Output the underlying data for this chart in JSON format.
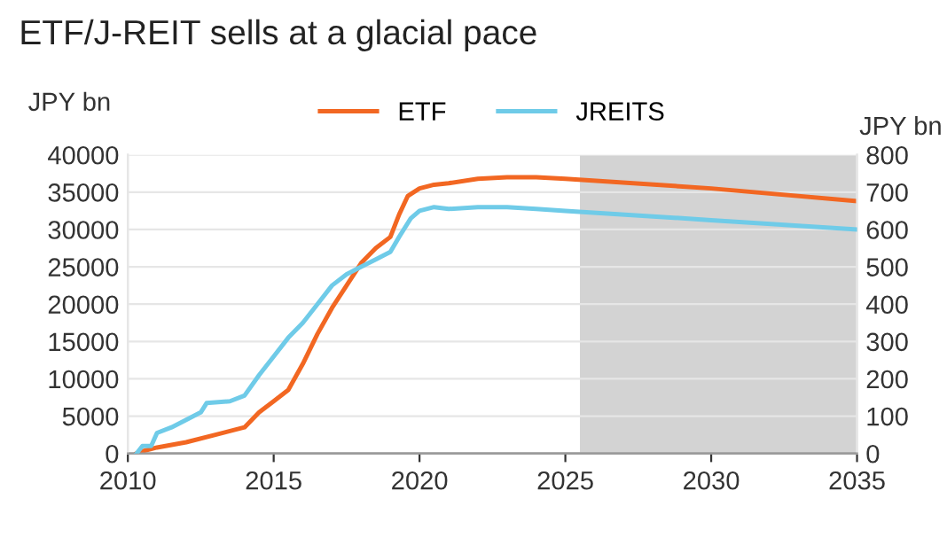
{
  "chart_data": {
    "type": "line",
    "title": "ETF/J-REIT sells at a glacial pace",
    "ylabel": "JPY bn",
    "y2label": "JPY bn",
    "series": [
      {
        "name": "ETF",
        "color": "#f26722",
        "x": [
          2010.3,
          2010.5,
          2011,
          2012,
          2013,
          2014,
          2014.5,
          2015,
          2015.5,
          2016,
          2016.5,
          2017,
          2017.5,
          2018,
          2018.5,
          2019,
          2019.3,
          2019.6,
          2020,
          2020.5,
          2021,
          2022,
          2023,
          2024,
          2025,
          2030,
          2035
        ],
        "values": [
          0,
          300,
          800,
          1500,
          2500,
          3500,
          5500,
          7000,
          8500,
          12000,
          16000,
          19500,
          22500,
          25500,
          27500,
          29000,
          32000,
          34500,
          35500,
          36000,
          36200,
          36800,
          37000,
          37000,
          36800,
          35500,
          33800
        ]
      },
      {
        "name": "JREITS",
        "color": "#6fcbe8",
        "axis": "y2",
        "x": [
          2010.3,
          2010.5,
          2010.8,
          2011,
          2011.5,
          2012,
          2012.5,
          2012.7,
          2013.5,
          2014,
          2014.5,
          2015,
          2015.5,
          2016,
          2016.5,
          2017,
          2017.5,
          2018,
          2018.5,
          2019,
          2019.3,
          2019.7,
          2020,
          2020.5,
          2021,
          2022,
          2023,
          2024,
          2025,
          2030,
          2035
        ],
        "values": [
          0,
          20,
          20,
          55,
          70,
          90,
          110,
          135,
          140,
          155,
          210,
          260,
          310,
          350,
          400,
          450,
          480,
          500,
          520,
          540,
          580,
          630,
          650,
          660,
          655,
          660,
          660,
          655,
          650,
          625,
          600
        ]
      }
    ],
    "xlim": [
      2010,
      2035
    ],
    "xticks": [
      2010,
      2015,
      2020,
      2025,
      2030,
      2035
    ],
    "ylim": [
      0,
      40000
    ],
    "yticks": [
      0,
      5000,
      10000,
      15000,
      20000,
      25000,
      30000,
      35000,
      40000
    ],
    "y2lim": [
      0,
      800
    ],
    "y2ticks": [
      0,
      100,
      200,
      300,
      400,
      500,
      600,
      700,
      800
    ],
    "bands": [
      {
        "axis": "x",
        "from": 2025.5,
        "to": 2035,
        "color": "#d3d3d3"
      }
    ],
    "grid": "y",
    "legend": "top",
    "line_style": "solid",
    "marker": "none"
  }
}
